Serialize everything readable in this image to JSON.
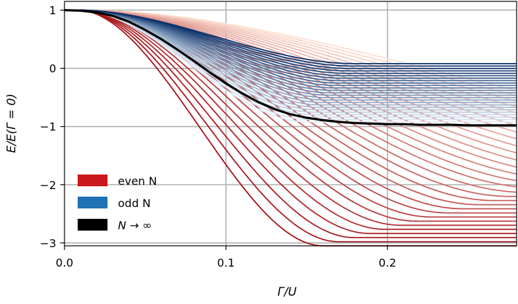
{
  "chart_data": {
    "type": "line",
    "title": "",
    "xlabel": "Γ/U",
    "ylabel": "E/E(Γ = 0)",
    "xlim": [
      0,
      0.28
    ],
    "ylim": [
      -3.05,
      1.15
    ],
    "grid": true,
    "x_ticks": [
      0.0,
      0.1,
      0.2
    ],
    "x_tick_labels": [
      "0.0",
      "0.1",
      "0.2"
    ],
    "y_ticks": [
      1,
      0,
      -1,
      -2,
      -3
    ],
    "y_tick_labels": [
      "1",
      "0",
      "−1",
      "−2",
      "−3"
    ],
    "legend": {
      "placement": "lower-left",
      "entries": [
        {
          "label": "even N",
          "color": "#cb181d"
        },
        {
          "label": "odd N",
          "color": "#2171b5"
        },
        {
          "label": "N → ∞",
          "color": "#000000"
        }
      ]
    },
    "families": {
      "even": {
        "name": "even N",
        "count": 30,
        "color_light": "#fde0d2",
        "color_dark": "#a50f15",
        "onset_light": 0.16,
        "onset_dark": 0.02,
        "rise_light": 0.28,
        "rise_dark": 0.14,
        "end_light": -1.0,
        "end_dark": -3.05
      },
      "odd": {
        "name": "odd N",
        "count": 25,
        "color_light": "#deebf7",
        "color_dark": "#08306b",
        "onset_light": 0.06,
        "onset_dark": 0.04,
        "rise_light": 0.09,
        "rise_dark": 0.14,
        "end_light": -0.92,
        "end_dark": 0.08
      }
    },
    "limit_series": {
      "name": "N → ∞",
      "color": "#000000",
      "x": [
        0,
        0.01,
        0.02,
        0.03,
        0.04,
        0.05,
        0.06,
        0.07,
        0.08,
        0.09,
        0.1,
        0.11,
        0.12,
        0.13,
        0.14,
        0.15,
        0.16,
        0.17,
        0.18,
        0.19,
        0.2,
        0.21,
        0.22,
        0.23,
        0.24,
        0.25,
        0.26,
        0.27,
        0.28
      ],
      "y": [
        1.0,
        0.99,
        0.96,
        0.9,
        0.8,
        0.66,
        0.5,
        0.32,
        0.13,
        -0.07,
        -0.26,
        -0.43,
        -0.58,
        -0.7,
        -0.79,
        -0.85,
        -0.89,
        -0.92,
        -0.94,
        -0.95,
        -0.96,
        -0.96,
        -0.97,
        -0.97,
        -0.97,
        -0.98,
        -0.98,
        -0.98,
        -0.98
      ]
    }
  }
}
